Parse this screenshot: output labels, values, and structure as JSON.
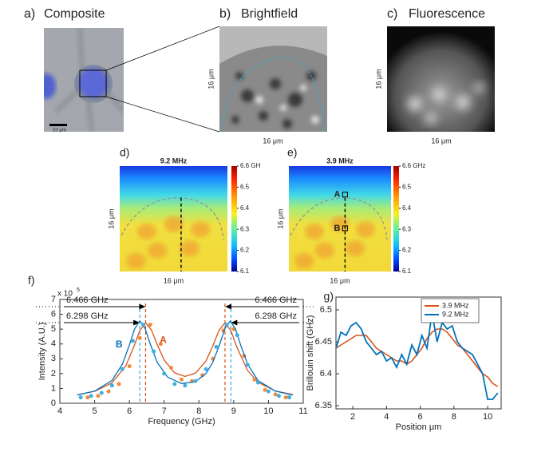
{
  "figure": {
    "panels": [
      {
        "label": "a)",
        "title": "Composite",
        "scale_bar": "10 μm"
      },
      {
        "label": "b)",
        "title": "Brightfield",
        "x_label": "16 μm",
        "y_label": "16 μm"
      },
      {
        "label": "c)",
        "title": "Fluorescence",
        "x_label": "16 μm",
        "y_label": "16 μm"
      }
    ]
  },
  "chart_data": [
    {
      "type": "heatmap",
      "panel_label": "d)",
      "title": "9.2 MHz",
      "x_label": "16 μm",
      "y_label": "16 μm",
      "clim": [
        6.1,
        6.6
      ],
      "colorbar_ticks": [
        {
          "value": 6.6,
          "label": "6.6 GH"
        },
        6.5,
        6.4,
        6.3,
        6.2,
        6.1
      ]
    },
    {
      "type": "heatmap",
      "panel_label": "e)",
      "title": "3.9 MHz",
      "x_label": "16 μm",
      "y_label": "16 μm",
      "clim": [
        6.1,
        6.6
      ],
      "colorbar_ticks": [
        {
          "value": 6.6,
          "label": "6.6 GHz"
        },
        6.5,
        6.4,
        6.3,
        6.2,
        6.1
      ],
      "markers": [
        {
          "label": "A"
        },
        {
          "label": "B"
        }
      ]
    },
    {
      "type": "scatter",
      "panel_label": "f)",
      "x_label": "Frequency (GHz)",
      "y_label": "Intensity (A.U.)",
      "y_multiplier": "x 10",
      "y_exponent": 5,
      "xlim": [
        4,
        11
      ],
      "ylim": [
        0,
        7
      ],
      "xticks": [
        4,
        5,
        6,
        7,
        8,
        9,
        10,
        11
      ],
      "yticks": [
        0,
        1,
        2,
        3,
        4,
        5,
        6,
        7
      ],
      "series": [
        {
          "name": "A",
          "color": "#d95319",
          "point_color": "#f08a3c",
          "x": [
            4.8,
            5.1,
            5.4,
            5.7,
            6.0,
            6.3,
            6.6,
            6.9,
            7.2,
            7.5,
            7.8,
            8.1,
            8.4,
            8.7,
            9.0,
            9.3,
            9.6,
            9.9,
            10.2,
            10.5
          ],
          "values": [
            0.4,
            0.5,
            0.8,
            1.3,
            2.5,
            4.4,
            5.3,
            4.0,
            2.4,
            1.6,
            1.5,
            1.9,
            3.0,
            4.9,
            5.0,
            3.2,
            1.6,
            0.9,
            0.6,
            0.4
          ],
          "fit_x": [
            4.5,
            5,
            5.5,
            5.9,
            6.15,
            6.3,
            6.466,
            6.63,
            6.8,
            7.0,
            7.3,
            7.6,
            7.9,
            8.2,
            8.4,
            8.58,
            8.75,
            8.92,
            9.1,
            9.4,
            9.7,
            10.2,
            10.7
          ],
          "fit_values": [
            0.57,
            0.81,
            1.38,
            2.54,
            3.95,
            4.9,
            5.43,
            4.96,
            3.97,
            2.92,
            2.05,
            1.81,
            2.03,
            2.84,
            3.87,
            4.94,
            5.43,
            4.89,
            3.74,
            2.21,
            1.41,
            0.83,
            0.59
          ]
        },
        {
          "name": "B",
          "color": "#0072bd",
          "point_color": "#3fb0e0",
          "x": [
            4.6,
            4.9,
            5.2,
            5.5,
            5.8,
            6.1,
            6.4,
            6.7,
            7.0,
            7.3,
            7.6,
            7.9,
            8.2,
            8.5,
            8.8,
            9.1,
            9.4,
            9.7,
            10.0,
            10.3,
            10.6
          ],
          "values": [
            0.4,
            0.5,
            0.7,
            1.2,
            2.3,
            4.2,
            5.3,
            3.5,
            2.0,
            1.3,
            1.2,
            1.5,
            2.3,
            3.8,
            5.3,
            4.6,
            2.6,
            1.4,
            0.8,
            0.5,
            0.4
          ],
          "fit_x": [
            4.5,
            5,
            5.5,
            5.8,
            6.0,
            6.15,
            6.3,
            6.45,
            6.6,
            6.8,
            7.1,
            7.5,
            7.9,
            8.2,
            8.4,
            8.6,
            8.75,
            8.9,
            9.05,
            9.2,
            9.4,
            9.7,
            10.2,
            10.7
          ],
          "fit_values": [
            0.56,
            0.82,
            1.54,
            2.64,
            3.92,
            5.02,
            5.55,
            5.05,
            3.99,
            2.76,
            1.76,
            1.33,
            1.46,
            2.0,
            2.76,
            3.99,
            5.05,
            5.55,
            5.02,
            3.92,
            2.63,
            1.53,
            0.82,
            0.55
          ]
        }
      ],
      "vlines": [
        {
          "x": 6.466,
          "color": "#d95319",
          "label": "6.466 GHz"
        },
        {
          "x": 6.298,
          "color": "#3fa9dc",
          "label": "6.298 GHz"
        },
        {
          "x": 8.75,
          "color": "#d95319",
          "label": "6.466 GHz"
        },
        {
          "x": 8.92,
          "color": "#3fa9dc",
          "label": "6.298 GHz"
        }
      ]
    },
    {
      "type": "line",
      "panel_label": "g)",
      "x_label": "Position μm",
      "y_label": "Brillouin shift (GHz)",
      "xlim": [
        1,
        10.8
      ],
      "ylim": [
        6.345,
        6.52
      ],
      "xticks": [
        2,
        4,
        6,
        8,
        10
      ],
      "yticks": [
        6.35,
        6.4,
        6.45,
        6.5
      ],
      "legend": "upper right",
      "x": [
        1.0,
        1.3,
        1.6,
        1.9,
        2.2,
        2.5,
        2.8,
        3.1,
        3.4,
        3.7,
        4.0,
        4.3,
        4.6,
        4.9,
        5.2,
        5.5,
        5.8,
        6.1,
        6.4,
        6.7,
        7.0,
        7.3,
        7.6,
        7.9,
        8.2,
        8.5,
        8.8,
        9.1,
        9.4,
        9.7,
        10.0,
        10.3,
        10.6
      ],
      "series": [
        {
          "name": "3.9 MHz",
          "color": "#d95319",
          "values": [
            6.44,
            6.445,
            6.45,
            6.455,
            6.46,
            6.46,
            6.46,
            6.45,
            6.44,
            6.435,
            6.43,
            6.425,
            6.42,
            6.42,
            6.415,
            6.42,
            6.43,
            6.44,
            6.455,
            6.465,
            6.47,
            6.47,
            6.465,
            6.455,
            6.445,
            6.44,
            6.43,
            6.42,
            6.41,
            6.4,
            6.395,
            6.385,
            6.38
          ]
        },
        {
          "name": "9.2 MHz",
          "color": "#0072bd",
          "values": [
            6.44,
            6.465,
            6.46,
            6.475,
            6.48,
            6.47,
            6.45,
            6.44,
            6.43,
            6.435,
            6.42,
            6.425,
            6.41,
            6.43,
            6.415,
            6.445,
            6.43,
            6.46,
            6.44,
            6.495,
            6.45,
            6.48,
            6.47,
            6.475,
            6.45,
            6.44,
            6.435,
            6.43,
            6.415,
            6.4,
            6.36,
            6.36,
            6.37
          ]
        }
      ]
    }
  ]
}
